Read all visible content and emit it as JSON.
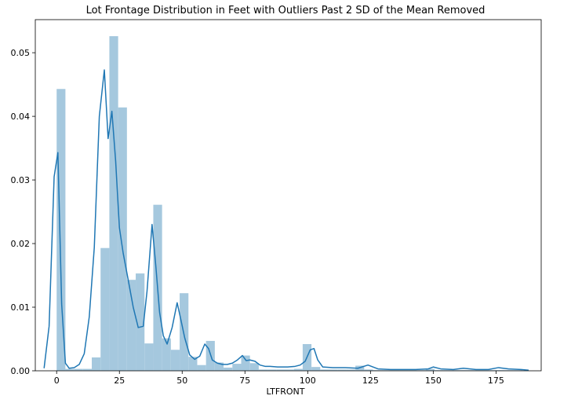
{
  "chart_data": {
    "type": "bar",
    "title": "Lot Frontage Distribution in Feet with Outliers Past 2 SD of the Mean Removed",
    "xlabel": "LTFRONT",
    "ylabel": "",
    "xlim": [
      -8.5,
      193
    ],
    "ylim": [
      0,
      0.0552
    ],
    "x_ticks": [
      0,
      25,
      50,
      75,
      100,
      125,
      150,
      175
    ],
    "y_ticks": [
      0.0,
      0.01,
      0.02,
      0.03,
      0.04,
      0.05
    ],
    "y_tick_labels": [
      "0.00",
      "0.01",
      "0.02",
      "0.03",
      "0.04",
      "0.05"
    ],
    "grid": false,
    "legend": "none",
    "histogram": {
      "bin_edges": [
        0,
        3.5,
        7,
        10.5,
        14,
        17.5,
        21,
        24.5,
        28,
        31.5,
        35,
        38.5,
        42,
        45.5,
        49,
        52.5,
        56,
        59.5,
        63,
        66.5,
        70,
        73.5,
        77,
        80.5,
        84,
        87.5,
        91,
        94.5,
        98,
        101.5,
        105,
        108.5,
        112,
        115.5,
        119,
        122.5,
        126,
        129.5,
        133,
        136.5,
        140,
        143.5,
        147,
        150.5,
        154,
        157.5,
        161,
        164.5,
        168,
        171.5,
        175,
        178.5,
        182,
        185.5
      ],
      "density": [
        0.0443,
        0.0003,
        0.0003,
        0.0003,
        0.0021,
        0.0193,
        0.0526,
        0.0414,
        0.0143,
        0.0153,
        0.0043,
        0.0261,
        0.0051,
        0.0033,
        0.0122,
        0.0022,
        0.0009,
        0.0047,
        0.0013,
        0.0005,
        0.0011,
        0.0024,
        0.0012,
        0.0002,
        0.0002,
        0.0002,
        0.0002,
        0.0003,
        0.0042,
        0.0006,
        0.0002,
        0.0002,
        0.0002,
        0.0002,
        0.0008,
        0.0002,
        0.0001,
        0.0001,
        0.0001,
        0.0001,
        0.0001,
        0.0001,
        0.0003,
        0.0001,
        0.0001,
        0.0001,
        0.0001,
        0.0001,
        0.0001,
        0.0001,
        0.0001,
        0.0001,
        0.0001
      ]
    },
    "kde": {
      "x": [
        -5,
        -3,
        -1,
        0.5,
        2,
        3.5,
        5,
        7,
        9,
        11,
        13,
        15,
        17,
        19,
        20.5,
        22,
        23.5,
        25,
        26.5,
        28.5,
        30.5,
        32.5,
        34.5,
        36,
        38,
        39.5,
        41,
        42.5,
        44,
        46,
        48,
        49.5,
        51,
        53,
        55,
        57,
        59,
        60.5,
        62,
        64,
        66,
        68,
        70,
        72,
        74,
        75.5,
        77,
        79,
        81,
        83,
        85,
        88,
        92,
        95,
        97,
        99,
        101,
        102.5,
        104,
        106,
        110,
        115,
        120,
        124,
        128,
        133,
        138,
        143,
        148,
        150,
        153,
        158,
        162,
        167,
        172,
        176,
        180,
        185,
        188
      ],
      "y": [
        0.0004,
        0.007,
        0.0305,
        0.0343,
        0.0105,
        0.0012,
        0.0004,
        0.0005,
        0.001,
        0.0027,
        0.0085,
        0.0194,
        0.04,
        0.0473,
        0.0365,
        0.0408,
        0.033,
        0.0225,
        0.0185,
        0.0143,
        0.01,
        0.0068,
        0.007,
        0.0125,
        0.023,
        0.0165,
        0.0092,
        0.0055,
        0.0042,
        0.0068,
        0.0107,
        0.008,
        0.0052,
        0.0025,
        0.0018,
        0.0023,
        0.0042,
        0.0035,
        0.0017,
        0.0012,
        0.001,
        0.001,
        0.0012,
        0.0017,
        0.0024,
        0.0016,
        0.0017,
        0.0015,
        0.0009,
        0.0007,
        0.0007,
        0.0006,
        0.0006,
        0.0007,
        0.0009,
        0.0015,
        0.0033,
        0.0035,
        0.0017,
        0.0006,
        0.0005,
        0.0005,
        0.0004,
        0.0009,
        0.0003,
        0.0002,
        0.0002,
        0.0002,
        0.0003,
        0.0006,
        0.0003,
        0.0002,
        0.0004,
        0.0002,
        0.0002,
        0.0005,
        0.0003,
        0.0002,
        0.0001
      ]
    },
    "colors": {
      "bar_fill": "#a5c8de",
      "kde_line": "#1f77b4",
      "axis": "#000000"
    }
  }
}
